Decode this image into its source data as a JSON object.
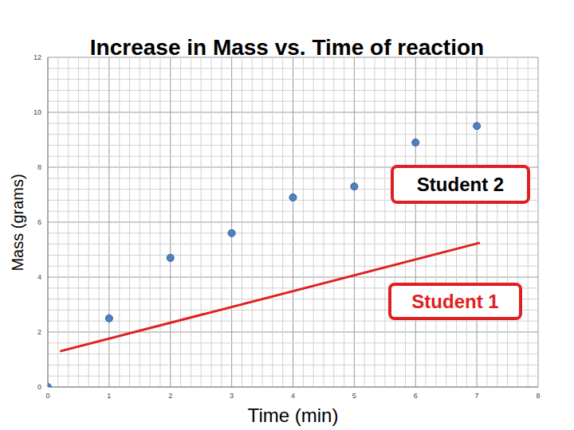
{
  "chart_data": {
    "type": "scatter",
    "title": "Increase in Mass vs. Time of reaction",
    "x_label": "Time (min)",
    "y_label": "Mass (grams)",
    "xlim": [
      0,
      8
    ],
    "xticks": [
      0,
      1,
      2,
      3,
      4,
      5,
      6,
      7,
      8
    ],
    "ylim": [
      0,
      12
    ],
    "yticks": [
      0,
      2,
      4,
      6,
      8,
      10,
      12
    ],
    "grid": true,
    "series": [
      {
        "type": "scatter",
        "marker": "circle",
        "color": "#4f81bd",
        "x": [
          0,
          1,
          2,
          3,
          4,
          5,
          6,
          7
        ],
        "values": [
          0,
          2.5,
          4.7,
          5.6,
          6.9,
          7.3,
          8.9,
          9.5
        ]
      },
      {
        "type": "line",
        "line_style": "solid",
        "color": "#e02020",
        "x": [
          0.2,
          7.05
        ],
        "values": [
          1.3,
          5.25
        ]
      }
    ],
    "annotations": [
      {
        "text": "Student 2",
        "color": "#000000"
      },
      {
        "text": "Student 1",
        "color": "#e02020"
      }
    ]
  }
}
